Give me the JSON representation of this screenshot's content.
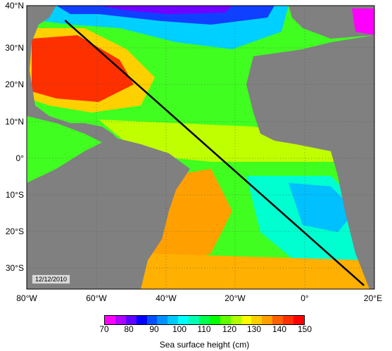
{
  "map": {
    "date": "12/12/2010",
    "lat_labels": [
      "40°N",
      "30°N",
      "20°N",
      "10°N",
      "0°",
      "10°S",
      "20°S",
      "30°S"
    ],
    "lon_labels": [
      "80°W",
      "60°W",
      "40°W",
      "20°W",
      "0°",
      "20°E"
    ],
    "lon_range": [
      -80,
      20
    ],
    "lat_range": [
      -36,
      41
    ],
    "grid": true,
    "track": {
      "start": [
        -69,
        37
      ],
      "end": [
        17,
        -35
      ]
    },
    "land_color": "#808080"
  },
  "colorbar": {
    "title": "Sea surface height (cm)",
    "ticks": [
      "70",
      "80",
      "90",
      "100",
      "110",
      "120",
      "130",
      "140",
      "150"
    ],
    "colors": [
      "#ff00ff",
      "#b000ff",
      "#6000ff",
      "#0000ff",
      "#0050ff",
      "#0090ff",
      "#00c8ff",
      "#00ffff",
      "#00ffb0",
      "#00ff50",
      "#00ff00",
      "#60ff00",
      "#b0ff00",
      "#ffff00",
      "#ffd000",
      "#ffa000",
      "#ff6000",
      "#ff3000",
      "#ff0000"
    ]
  }
}
